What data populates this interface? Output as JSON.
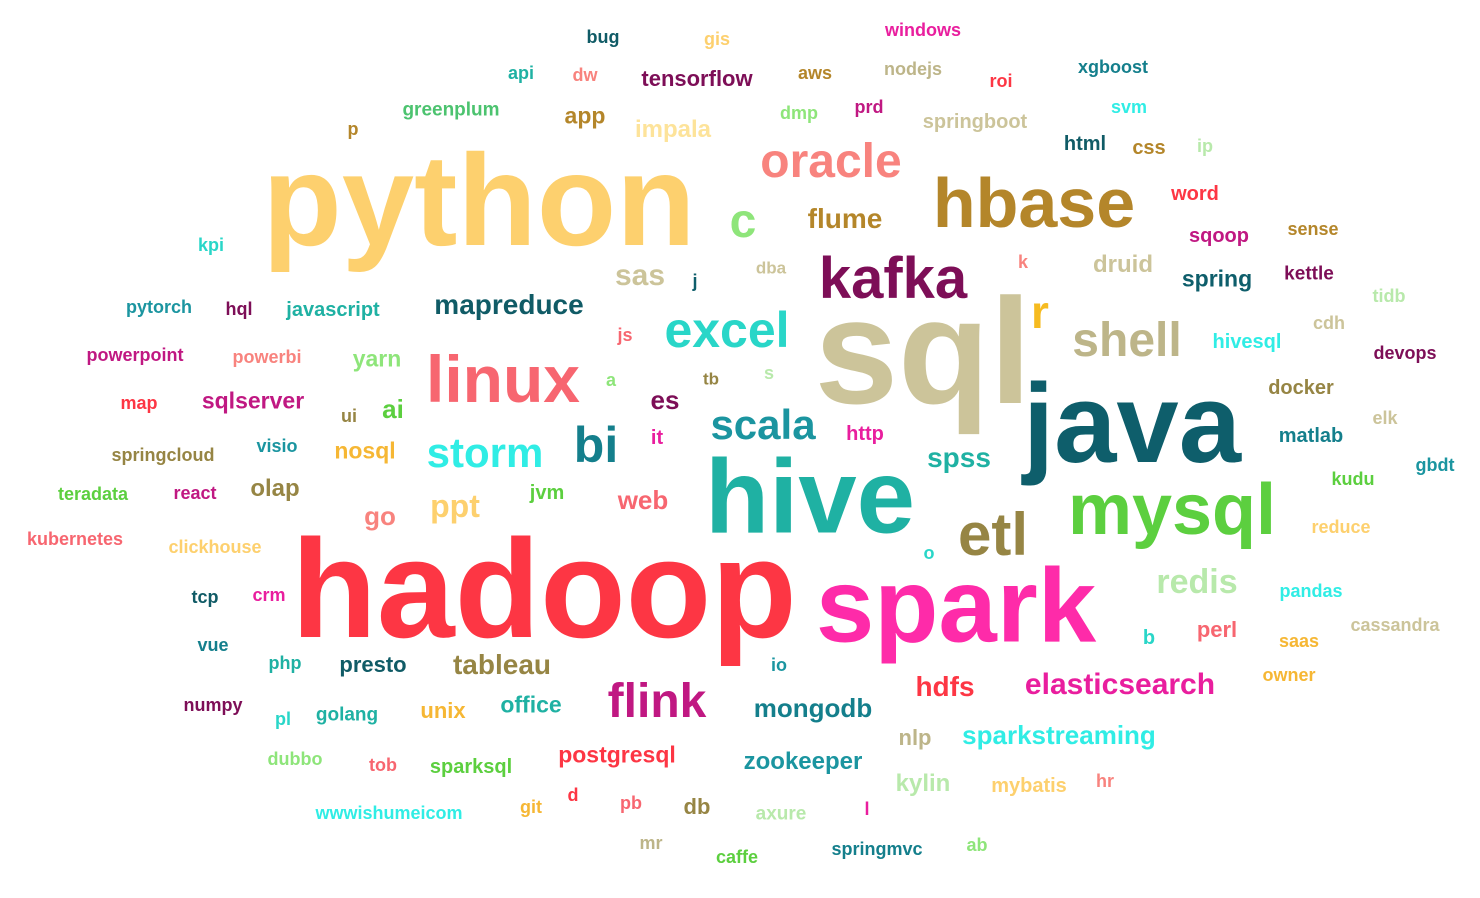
{
  "words": [
    {
      "text": "python",
      "color": "#FDD06E"
    },
    {
      "text": "sql",
      "color": "#CCC49A"
    },
    {
      "text": "hadoop",
      "color": "#FD3644"
    },
    {
      "text": "java",
      "color": "#0E5E6B"
    },
    {
      "text": "hive",
      "color": "#1FB1A3"
    },
    {
      "text": "spark",
      "color": "#FE2BA9"
    },
    {
      "text": "hbase",
      "color": "#B4862A"
    },
    {
      "text": "mysql",
      "color": "#5CCF3F"
    },
    {
      "text": "linux",
      "color": "#F76670"
    },
    {
      "text": "kafka",
      "color": "#7D0E57"
    },
    {
      "text": "oracle",
      "color": "#F8837E"
    },
    {
      "text": "excel",
      "color": "#29D6C8"
    },
    {
      "text": "etl",
      "color": "#968544"
    },
    {
      "text": "shell",
      "color": "#BDB589"
    },
    {
      "text": "flink",
      "color": "#C01882"
    },
    {
      "text": "bi",
      "color": "#147F8C"
    },
    {
      "text": "scala",
      "color": "#1B95A0"
    },
    {
      "text": "storm",
      "color": "#30EDE5"
    },
    {
      "text": "redis",
      "color": "#B8E9AB"
    },
    {
      "text": "c",
      "color": "#8EE57A"
    },
    {
      "text": "r",
      "color": "#F6BB20"
    },
    {
      "text": "mapreduce",
      "color": "#105B66"
    },
    {
      "text": "elasticsearch",
      "color": "#E91E9E"
    },
    {
      "text": "tableau",
      "color": "#968544"
    },
    {
      "text": "flume",
      "color": "#B4862A"
    },
    {
      "text": "sas",
      "color": "#CCC49A"
    },
    {
      "text": "ppt",
      "color": "#FDD06E"
    },
    {
      "text": "hdfs",
      "color": "#FD3644"
    },
    {
      "text": "mongodb",
      "color": "#147F8C"
    },
    {
      "text": "sparkstreaming",
      "color": "#30EDE5"
    },
    {
      "text": "zookeeper",
      "color": "#1B95A0"
    },
    {
      "text": "spss",
      "color": "#1FB1A3"
    },
    {
      "text": "impala",
      "color": "#FDE39A"
    },
    {
      "text": "druid",
      "color": "#CCC49A"
    },
    {
      "text": "spring",
      "color": "#0E5E6B"
    },
    {
      "text": "tensorflow",
      "color": "#7D0E57"
    },
    {
      "text": "postgresql",
      "color": "#FD3644"
    },
    {
      "text": "kylin",
      "color": "#B8E9AB"
    },
    {
      "text": "web",
      "color": "#F76670"
    },
    {
      "text": "sqlserver",
      "color": "#C01882"
    },
    {
      "text": "presto",
      "color": "#105B66"
    },
    {
      "text": "nosql",
      "color": "#F6B734"
    },
    {
      "text": "yarn",
      "color": "#8EE57A"
    },
    {
      "text": "olap",
      "color": "#968544"
    },
    {
      "text": "es",
      "color": "#7D0E57"
    },
    {
      "text": "ai",
      "color": "#5CCF3F"
    },
    {
      "text": "go",
      "color": "#F8837E"
    },
    {
      "text": "unix",
      "color": "#F6B734"
    },
    {
      "text": "office",
      "color": "#1FB1A3"
    },
    {
      "text": "app",
      "color": "#B4862A"
    },
    {
      "text": "springboot",
      "color": "#CCC49A"
    },
    {
      "text": "greenplum",
      "color": "#4CC36F"
    },
    {
      "text": "javascript",
      "color": "#1FB1A3"
    },
    {
      "text": "hivesql",
      "color": "#30EDE5"
    },
    {
      "text": "docker",
      "color": "#968544"
    },
    {
      "text": "matlab",
      "color": "#147F8C"
    },
    {
      "text": "perl",
      "color": "#F76670"
    },
    {
      "text": "mybatis",
      "color": "#FDD06E"
    },
    {
      "text": "sparksql",
      "color": "#5CCF3F"
    },
    {
      "text": "golang",
      "color": "#1FB1A3"
    },
    {
      "text": "jvm",
      "color": "#5CCF3F"
    },
    {
      "text": "http",
      "color": "#E91E9E"
    },
    {
      "text": "nlp",
      "color": "#BDB589"
    },
    {
      "text": "db",
      "color": "#968544"
    },
    {
      "text": "word",
      "color": "#FD3644"
    },
    {
      "text": "sqoop",
      "color": "#C01882"
    },
    {
      "text": "kettle",
      "color": "#7D0E57"
    },
    {
      "text": "css",
      "color": "#B4862A"
    },
    {
      "text": "html",
      "color": "#105B66"
    },
    {
      "text": "xgboost",
      "color": "#147F8C"
    },
    {
      "text": "aws",
      "color": "#B4862A"
    },
    {
      "text": "nodejs",
      "color": "#BDB589"
    },
    {
      "text": "windows",
      "color": "#E91E9E"
    },
    {
      "text": "bug",
      "color": "#105B66"
    },
    {
      "text": "gis",
      "color": "#FDD06E"
    },
    {
      "text": "api",
      "color": "#1FB1A3"
    },
    {
      "text": "dw",
      "color": "#F8837E"
    },
    {
      "text": "roi",
      "color": "#FD3644"
    },
    {
      "text": "dmp",
      "color": "#8EE57A"
    },
    {
      "text": "prd",
      "color": "#C01882"
    },
    {
      "text": "svm",
      "color": "#30EDE5"
    },
    {
      "text": "ip",
      "color": "#B8E9AB"
    },
    {
      "text": "p",
      "color": "#B4862A"
    },
    {
      "text": "sense",
      "color": "#B4862A"
    },
    {
      "text": "kpi",
      "color": "#29D6C8"
    },
    {
      "text": "j",
      "color": "#0E5E6B"
    },
    {
      "text": "dba",
      "color": "#CCC49A"
    },
    {
      "text": "k",
      "color": "#F8837E"
    },
    {
      "text": "tidb",
      "color": "#B8E9AB"
    },
    {
      "text": "pytorch",
      "color": "#1B95A0"
    },
    {
      "text": "hql",
      "color": "#7D0E57"
    },
    {
      "text": "cdh",
      "color": "#CCC49A"
    },
    {
      "text": "powerpoint",
      "color": "#C01882"
    },
    {
      "text": "powerbi",
      "color": "#F8837E"
    },
    {
      "text": "js",
      "color": "#F76670"
    },
    {
      "text": "devops",
      "color": "#7D0E57"
    },
    {
      "text": "a",
      "color": "#8EE57A"
    },
    {
      "text": "tb",
      "color": "#968544"
    },
    {
      "text": "s",
      "color": "#B8E9AB"
    },
    {
      "text": "map",
      "color": "#FD3644"
    },
    {
      "text": "ui",
      "color": "#968544"
    },
    {
      "text": "elk",
      "color": "#CCC49A"
    },
    {
      "text": "it",
      "color": "#E91E9E"
    },
    {
      "text": "visio",
      "color": "#1B95A0"
    },
    {
      "text": "springcloud",
      "color": "#968544"
    },
    {
      "text": "kudu",
      "color": "#5CCF3F"
    },
    {
      "text": "gbdt",
      "color": "#1B95A0"
    },
    {
      "text": "teradata",
      "color": "#5CCF3F"
    },
    {
      "text": "react",
      "color": "#C01882"
    },
    {
      "text": "reduce",
      "color": "#FDD06E"
    },
    {
      "text": "kubernetes",
      "color": "#F76670"
    },
    {
      "text": "clickhouse",
      "color": "#FDD06E"
    },
    {
      "text": "o",
      "color": "#29D6C8"
    },
    {
      "text": "tcp",
      "color": "#105B66"
    },
    {
      "text": "crm",
      "color": "#E91E9E"
    },
    {
      "text": "pandas",
      "color": "#30EDE5"
    },
    {
      "text": "cassandra",
      "color": "#CCC49A"
    },
    {
      "text": "b",
      "color": "#29D6C8"
    },
    {
      "text": "saas",
      "color": "#F6B734"
    },
    {
      "text": "vue",
      "color": "#147F8C"
    },
    {
      "text": "php",
      "color": "#1FB1A3"
    },
    {
      "text": "io",
      "color": "#1B95A0"
    },
    {
      "text": "owner",
      "color": "#F6B734"
    },
    {
      "text": "numpy",
      "color": "#7D0E57"
    },
    {
      "text": "pl",
      "color": "#29D6C8"
    },
    {
      "text": "dubbo",
      "color": "#8EE57A"
    },
    {
      "text": "tob",
      "color": "#F76670"
    },
    {
      "text": "hr",
      "color": "#F8837E"
    },
    {
      "text": "d",
      "color": "#FD3644"
    },
    {
      "text": "pb",
      "color": "#F76670"
    },
    {
      "text": "git",
      "color": "#F6B734"
    },
    {
      "text": "wwwishumeicom",
      "color": "#30EDE5"
    },
    {
      "text": "axure",
      "color": "#B8E9AB"
    },
    {
      "text": "l",
      "color": "#E91E9E"
    },
    {
      "text": "mr",
      "color": "#BDB589"
    },
    {
      "text": "caffe",
      "color": "#5CCF3F"
    },
    {
      "text": "springmvc",
      "color": "#147F8C"
    },
    {
      "text": "ab",
      "color": "#8EE57A"
    }
  ]
}
